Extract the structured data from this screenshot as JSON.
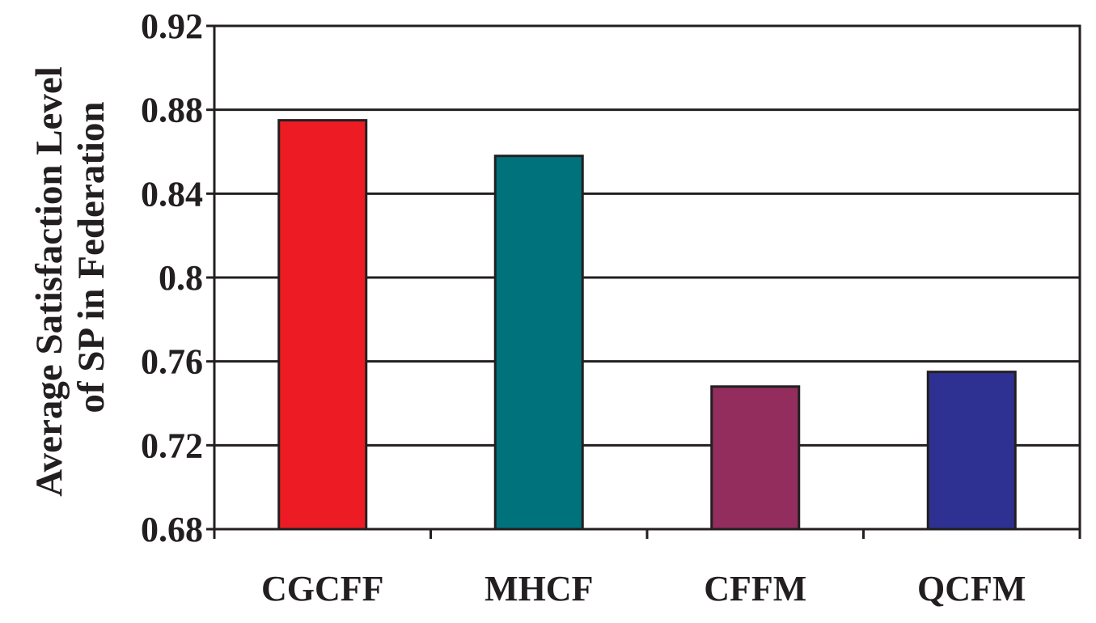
{
  "chart_data": {
    "type": "bar",
    "categories": [
      "CGCFF",
      "MHCF",
      "CFFM",
      "QCFM"
    ],
    "values": [
      0.875,
      0.858,
      0.748,
      0.755
    ],
    "ylabel_lines": [
      "Average Satisfaction Level",
      "of SP in Federation"
    ],
    "xlabel": "",
    "ylim": [
      0.68,
      0.92
    ],
    "yticks": [
      0.68,
      0.72,
      0.76,
      0.8,
      0.84,
      0.88,
      0.92
    ],
    "ytick_labels": [
      "0.68",
      "0.72",
      "0.76",
      "0.8",
      "0.84",
      "0.88",
      "0.92"
    ],
    "grid": true,
    "legend": "none",
    "colors": [
      "#ed1c24",
      "#00727c",
      "#932d5e",
      "#2e3192"
    ],
    "axis_color": "#231f20"
  }
}
